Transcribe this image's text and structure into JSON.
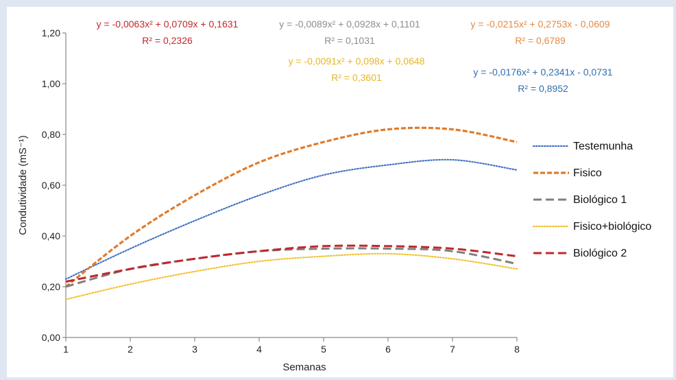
{
  "chart_data": {
    "type": "line",
    "xlabel": "Semanas",
    "ylabel": "Condutividade (mS⁻¹)",
    "xlim": [
      1,
      8
    ],
    "ylim": [
      0,
      1.2
    ],
    "x_ticks": [
      "1",
      "2",
      "3",
      "4",
      "5",
      "6",
      "7",
      "8"
    ],
    "y_ticks": [
      "0,00",
      "0,20",
      "0,40",
      "0,60",
      "0,80",
      "1,00",
      "1,20"
    ],
    "grid": false,
    "legend_position": "right",
    "x": [
      1,
      2,
      3,
      4,
      5,
      6,
      7,
      8
    ],
    "series": [
      {
        "name": "Testemunha",
        "color": "#4472c4",
        "dash": "dotted",
        "values": [
          0.23,
          0.35,
          0.46,
          0.56,
          0.64,
          0.68,
          0.7,
          0.66
        ]
      },
      {
        "name": "Fisico",
        "color": "#e07b2a",
        "dash": "dashed",
        "values": [
          0.2,
          0.4,
          0.56,
          0.69,
          0.77,
          0.82,
          0.82,
          0.77
        ]
      },
      {
        "name": "Biológico 1",
        "color": "#7f7f7f",
        "dash": "long-dash",
        "values": [
          0.2,
          0.27,
          0.31,
          0.34,
          0.35,
          0.35,
          0.34,
          0.29
        ]
      },
      {
        "name": "Fisico+biológico",
        "color": "#f2c12e",
        "dash": "dotted",
        "values": [
          0.15,
          0.21,
          0.26,
          0.3,
          0.32,
          0.33,
          0.31,
          0.27
        ]
      },
      {
        "name": "Biológico 2",
        "color": "#c0272d",
        "dash": "long-dash",
        "values": [
          0.22,
          0.27,
          0.31,
          0.34,
          0.36,
          0.36,
          0.35,
          0.32
        ]
      }
    ],
    "annotations": [
      {
        "equation": "y = -0,0063x² + 0,0709x + 0,1631",
        "r2": "R² = 0,2326",
        "color": "#c0272d"
      },
      {
        "equation": "y = -0,0089x² + 0,0928x + 0,1101",
        "r2": "R² = 0,1031",
        "color": "#8c8c8c"
      },
      {
        "equation": "y = -0,0091x² + 0,098x + 0,0648",
        "r2": "R² = 0,3601",
        "color": "#e8b623"
      },
      {
        "equation": "y = -0,0215x² + 0,2753x - 0,0609",
        "r2": "R² = 0,6789",
        "color": "#e08a45"
      },
      {
        "equation": "y = -0,0176x² + 0,2341x - 0,0731",
        "r2": "R² = 0,8952",
        "color": "#2f6fb0"
      }
    ]
  }
}
